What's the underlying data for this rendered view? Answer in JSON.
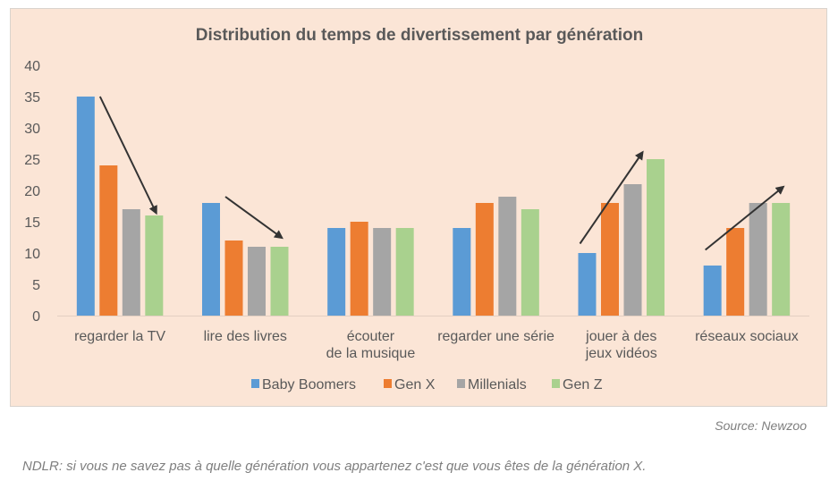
{
  "chart_data": {
    "type": "bar",
    "title": "Distribution du temps de divertissement par génération",
    "xlabel": "",
    "ylabel": "",
    "ylim": [
      0,
      40
    ],
    "yticks": [
      0,
      5,
      10,
      15,
      20,
      25,
      30,
      35,
      40
    ],
    "grid": false,
    "legend_position": "bottom",
    "categories": [
      [
        "regarder la TV"
      ],
      [
        "lire des livres"
      ],
      [
        "écouter",
        "de la musique"
      ],
      [
        "regarder une série"
      ],
      [
        "jouer à des",
        "jeux vidéos"
      ],
      [
        "réseaux sociaux"
      ]
    ],
    "series": [
      {
        "name": "Baby Boomers",
        "color": "#5b9bd5",
        "values": [
          35,
          18,
          14,
          14,
          10,
          8
        ]
      },
      {
        "name": "Gen X",
        "color": "#ed7d31",
        "values": [
          24,
          12,
          15,
          18,
          18,
          14
        ]
      },
      {
        "name": "Millenials",
        "color": "#a5a5a5",
        "values": [
          17,
          11,
          14,
          19,
          21,
          18
        ]
      },
      {
        "name": "Gen Z",
        "color": "#a9d18e",
        "values": [
          16,
          11,
          14,
          17,
          25,
          18
        ]
      }
    ],
    "annotations": [
      {
        "type": "trend-arrow",
        "category": "regarder la TV",
        "direction": "down",
        "from_value": 35,
        "to_value": 16.5
      },
      {
        "type": "trend-arrow",
        "category": "lire des livres",
        "direction": "down",
        "from_value": 19,
        "to_value": 12.5
      },
      {
        "type": "trend-arrow",
        "category": "jouer à des jeux vidéos",
        "direction": "up",
        "from_value": 11.5,
        "to_value": 26
      },
      {
        "type": "trend-arrow",
        "category": "réseaux sociaux",
        "direction": "up",
        "from_value": 10.5,
        "to_value": 20.5
      }
    ]
  },
  "footer": {
    "source": "Source: Newzoo",
    "note": "NDLR: si vous ne savez pas à quelle génération vous appartenez c'est que vous êtes de la génération X."
  },
  "colors": {
    "background": "#fbe5d6",
    "text": "#595959",
    "arrow": "#333333"
  }
}
